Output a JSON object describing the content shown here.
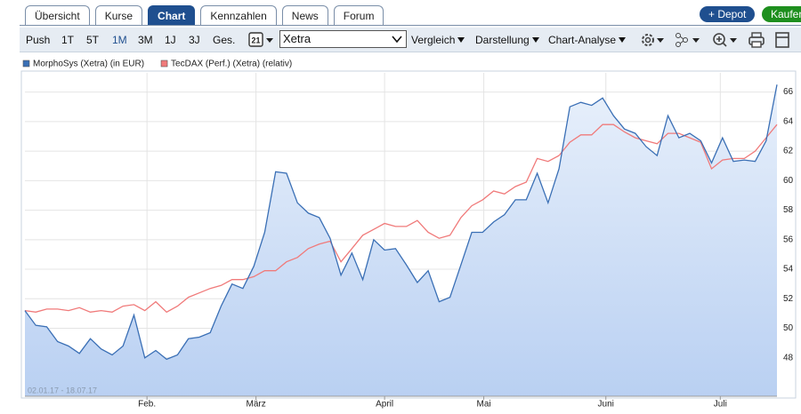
{
  "tabs": [
    "Übersicht",
    "Kurse",
    "Chart",
    "Kennzahlen",
    "News",
    "Forum"
  ],
  "active_tab": 2,
  "actions": {
    "depot": "+ Depot",
    "buy": "Kaufen"
  },
  "toolbar": {
    "ranges": [
      "Push",
      "1T",
      "5T",
      "1M",
      "3M",
      "1J",
      "3J",
      "Ges."
    ],
    "active_range": 3,
    "calendar": "21",
    "exchange": "Xetra",
    "menus": [
      "Vergleich",
      "Darstellung",
      "Chart-Analyse"
    ]
  },
  "chart_data": {
    "type": "line",
    "date_range": "02.01.17 - 18.07.17",
    "xlim": [
      0,
      69
    ],
    "xticks": [
      {
        "value": 11.2,
        "label": "Feb."
      },
      {
        "value": 21.2,
        "label": "März"
      },
      {
        "value": 33.0,
        "label": "April"
      },
      {
        "value": 42.1,
        "label": "Mai"
      },
      {
        "value": 53.3,
        "label": "Juni"
      },
      {
        "value": 63.8,
        "label": "Juli"
      }
    ],
    "ylim": [
      45.4,
      67.3
    ],
    "yticks": [
      48,
      50,
      52,
      54,
      56,
      58,
      60,
      62,
      64,
      66
    ],
    "grid": true,
    "series": [
      {
        "name": "MorphoSys (Xetra) (in EUR)",
        "color": "#3a6fb5",
        "fill": true,
        "values": [
          51.2,
          50.2,
          50.1,
          49.1,
          48.8,
          48.3,
          49.3,
          48.6,
          48.2,
          48.8,
          50.9,
          48.0,
          48.5,
          47.9,
          48.2,
          49.3,
          49.4,
          49.7,
          51.5,
          53.0,
          52.7,
          54.2,
          56.5,
          60.6,
          60.5,
          58.5,
          57.8,
          57.5,
          56.1,
          53.6,
          55.1,
          53.3,
          56.0,
          55.3,
          55.4,
          54.3,
          53.1,
          53.9,
          51.8,
          52.1,
          54.3,
          56.5,
          56.5,
          57.2,
          57.7,
          58.7,
          58.7,
          60.5,
          58.5,
          60.8,
          65.0,
          65.3,
          65.1,
          65.6,
          64.4,
          63.5,
          63.2,
          62.3,
          61.7,
          64.4,
          62.9,
          63.2,
          62.7,
          61.2,
          62.9,
          61.3,
          61.4,
          61.3,
          62.7,
          66.5
        ]
      },
      {
        "name": "TecDAX (Perf.) (Xetra) (relativ)",
        "color": "#f07a7a",
        "fill": false,
        "values": [
          51.2,
          51.1,
          51.3,
          51.3,
          51.2,
          51.4,
          51.1,
          51.2,
          51.1,
          51.5,
          51.6,
          51.2,
          51.8,
          51.1,
          51.5,
          52.1,
          52.4,
          52.7,
          52.9,
          53.3,
          53.3,
          53.5,
          53.9,
          53.9,
          54.5,
          54.8,
          55.4,
          55.7,
          55.9,
          54.5,
          55.4,
          56.3,
          56.7,
          57.1,
          56.9,
          56.9,
          57.3,
          56.5,
          56.1,
          56.3,
          57.5,
          58.3,
          58.7,
          59.3,
          59.1,
          59.6,
          59.9,
          61.5,
          61.3,
          61.7,
          62.6,
          63.1,
          63.1,
          63.8,
          63.8,
          63.3,
          62.9,
          62.7,
          62.5,
          63.2,
          63.2,
          62.9,
          62.6,
          60.8,
          61.4,
          61.5,
          61.5,
          62.0,
          62.9,
          63.8
        ]
      }
    ]
  }
}
